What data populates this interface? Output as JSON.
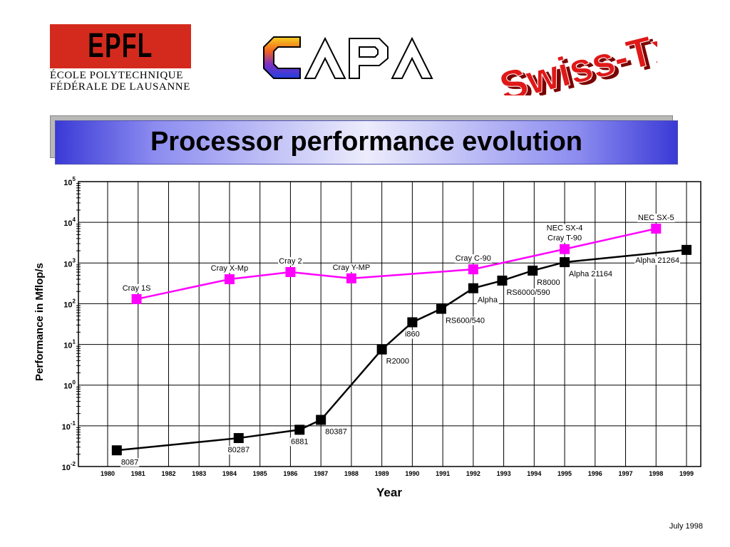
{
  "logos": {
    "epfl": {
      "mark": "EPFL",
      "line1": "ÉCOLE POLYTECHNIQUE",
      "line2": "FÉDÉRALE DE LAUSANNE",
      "color": "#d42a1e"
    },
    "capa": {
      "text": "CAPA"
    },
    "swisstx": {
      "text": "Swiss-Tx",
      "color": "#e01818"
    }
  },
  "title": "Processor performance evolution",
  "footer": {
    "date": "July 1998"
  },
  "chart_data": {
    "type": "line",
    "title": "",
    "xlabel": "Year",
    "ylabel": "Performance in Mflop/s",
    "y_scale": "log",
    "xlim": [
      1980,
      1999
    ],
    "ylim": [
      0.01,
      100000
    ],
    "grid": true,
    "x_ticks": [
      "1980",
      "1981",
      "1982",
      "1983",
      "1984",
      "1985",
      "1986",
      "1987",
      "1988",
      "1989",
      "1990",
      "1991",
      "1992",
      "1993",
      "1994",
      "1995",
      "1996",
      "1997",
      "1998",
      "1999"
    ],
    "y_ticks": [
      {
        "value": 0.01,
        "base": "10",
        "exp": "-2"
      },
      {
        "value": 0.1,
        "base": "10",
        "exp": "-1"
      },
      {
        "value": 1,
        "base": "10",
        "exp": "0"
      },
      {
        "value": 10,
        "base": "10",
        "exp": "1"
      },
      {
        "value": 100,
        "base": "10",
        "exp": "2"
      },
      {
        "value": 1000,
        "base": "10",
        "exp": "3"
      },
      {
        "value": 10000,
        "base": "10",
        "exp": "4"
      },
      {
        "value": 100000,
        "base": "10",
        "exp": "5"
      }
    ],
    "series": [
      {
        "color": "#000000",
        "points": [
          {
            "x": 1980.3,
            "y": 0.025,
            "label": "8087",
            "label_pos": "below-right"
          },
          {
            "x": 1984.3,
            "y": 0.05,
            "label": "80287",
            "label_pos": "below"
          },
          {
            "x": 1986.3,
            "y": 0.08,
            "label": "6881",
            "label_pos": "below"
          },
          {
            "x": 1987.0,
            "y": 0.14,
            "label": "80387",
            "label_pos": "below-right"
          },
          {
            "x": 1989.0,
            "y": 7.5,
            "label": "R2000",
            "label_pos": "below-right"
          },
          {
            "x": 1990.0,
            "y": 35,
            "label": "i860",
            "label_pos": "below"
          },
          {
            "x": 1990.95,
            "y": 75,
            "label": "RS600/540",
            "label_pos": "below-right"
          },
          {
            "x": 1992.0,
            "y": 240,
            "label": "Alpha",
            "label_pos": "below-right"
          },
          {
            "x": 1992.95,
            "y": 370,
            "label": "RS6000/590",
            "label_pos": "below-right"
          },
          {
            "x": 1993.95,
            "y": 650,
            "label": "R8000",
            "label_pos": "below-right"
          },
          {
            "x": 1995.0,
            "y": 1050,
            "label": "Alpha 21164",
            "label_pos": "below-right"
          },
          {
            "x": 1999.0,
            "y": 2100,
            "label": "Alpha 21264",
            "label_pos": "below-left"
          }
        ]
      },
      {
        "color": "#ff00ff",
        "points": [
          {
            "x": 1980.95,
            "y": 130,
            "label": "Cray 1S",
            "label_pos": "above"
          },
          {
            "x": 1984.0,
            "y": 400,
            "label": "Cray X-Mp",
            "label_pos": "above"
          },
          {
            "x": 1986.0,
            "y": 600,
            "label": "Cray 2",
            "label_pos": "above"
          },
          {
            "x": 1988.0,
            "y": 420,
            "label": "Cray Y-MP",
            "label_pos": "above"
          },
          {
            "x": 1992.0,
            "y": 700,
            "label": "Cray C-90",
            "label_pos": "above"
          },
          {
            "x": 1995.0,
            "y": 2200,
            "label": "NEC SX-4\nCray T-90",
            "label_pos": "above"
          },
          {
            "x": 1998.0,
            "y": 7000,
            "label": "NEC SX-5",
            "label_pos": "above"
          }
        ]
      }
    ]
  }
}
